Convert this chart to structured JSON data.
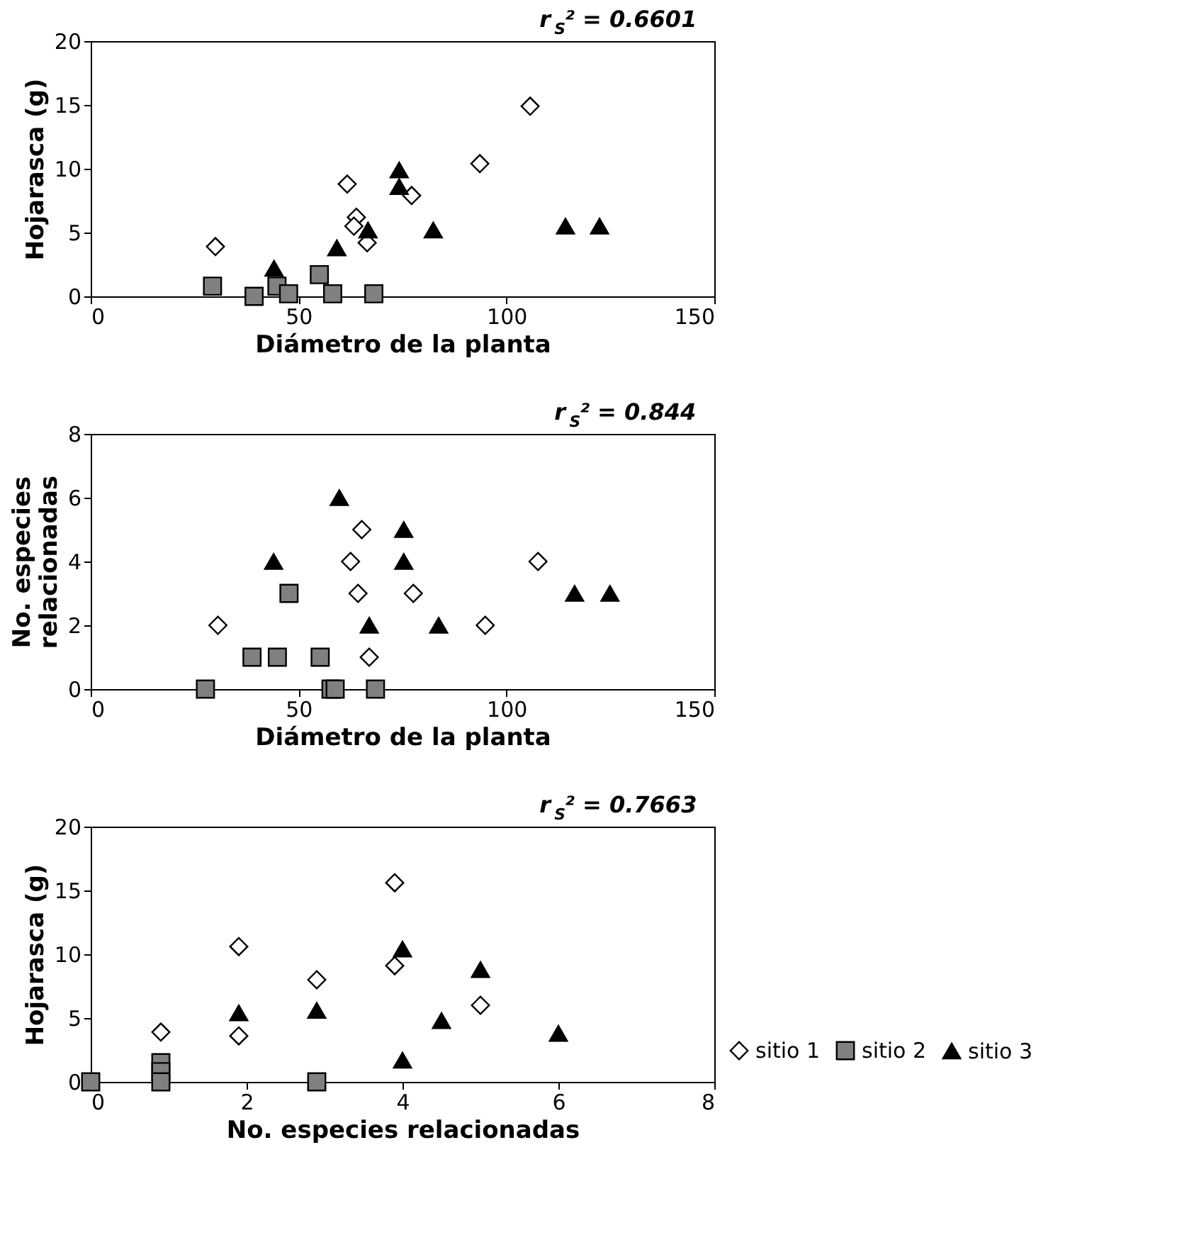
{
  "chart_data": [
    {
      "type": "scatter",
      "title": "r$_{S}$² = 0.6601",
      "xlabel": "Diámetro de la planta",
      "ylabel": "Hojarasca (g)",
      "xlim": [
        0,
        150
      ],
      "xticks": [
        0,
        50,
        100,
        150
      ],
      "ylim": [
        0,
        20
      ],
      "yticks": [
        0,
        5,
        10,
        15,
        20
      ],
      "grid": false,
      "legend": false,
      "series": [
        {
          "color": "#ffffff",
          "marker": "diamond",
          "x": [
            30,
            61.7,
            63.9,
            63.3,
            66.5,
            77.2,
            93.6,
            105.7
          ],
          "values": [
            3.9,
            8.8,
            6.2,
            5.5,
            4.2,
            7.9,
            10.4,
            14.9
          ]
        },
        {
          "color": "#808080",
          "marker": "square",
          "x": [
            29.3,
            39.3,
            44.8,
            47.6,
            55,
            58.2,
            68.1
          ],
          "values": [
            0.8,
            0,
            0.8,
            0.2,
            1.7,
            0.2,
            0.2
          ]
        },
        {
          "color": "#000000",
          "marker": "triangle",
          "x": [
            44.1,
            59.2,
            66.7,
            74.2,
            74.2,
            82.4,
            114.2,
            122.4
          ],
          "values": [
            2.2,
            3.8,
            5.2,
            9.9,
            8.6,
            5.2,
            5.5,
            5.5
          ]
        }
      ]
    },
    {
      "type": "scatter",
      "title": "r$_{S}$² = 0.844",
      "xlabel": "Diámetro de la planta",
      "ylabel": "No. especies relacionadas",
      "xlim": [
        0,
        150
      ],
      "xticks": [
        0,
        50,
        100,
        150
      ],
      "ylim": [
        0,
        8
      ],
      "yticks": [
        0,
        2,
        4,
        6,
        8
      ],
      "grid": false,
      "legend": false,
      "series": [
        {
          "color": "#ffffff",
          "marker": "diamond",
          "x": [
            30.6,
            62.5,
            65.2,
            64.3,
            67,
            77.6,
            94.9,
            107.6
          ],
          "values": [
            2,
            4,
            5,
            3,
            1,
            3,
            2,
            4
          ]
        },
        {
          "color": "#808080",
          "marker": "square",
          "x": [
            27.6,
            38.8,
            44.9,
            47.7,
            55.2,
            57.8,
            58.8,
            68.5
          ],
          "values": [
            0,
            1,
            1,
            3,
            1,
            0,
            0,
            0
          ]
        },
        {
          "color": "#000000",
          "marker": "triangle",
          "x": [
            44,
            59.8,
            75.3,
            75.3,
            67,
            83.7,
            116.4,
            124.9
          ],
          "values": [
            4,
            6,
            5,
            4,
            2,
            2,
            3,
            3
          ]
        }
      ]
    },
    {
      "type": "scatter",
      "title": "r$_{S}$² = 0.7663",
      "xlabel": "No. especies relacionadas",
      "ylabel": "Hojarasca (g)",
      "xlim": [
        0,
        8
      ],
      "xticks": [
        0,
        2,
        4,
        6,
        8
      ],
      "ylim": [
        0,
        20
      ],
      "yticks": [
        0,
        5,
        10,
        15,
        20
      ],
      "grid": false,
      "legend": "right",
      "series": [
        {
          "name": "sitio 1",
          "color": "#ffffff",
          "marker": "diamond",
          "x": [
            0.9,
            1.9,
            1.9,
            2.9,
            3.9,
            3.9,
            5
          ],
          "values": [
            3.9,
            10.6,
            3.6,
            8,
            15.6,
            9.1,
            6
          ]
        },
        {
          "name": "sitio 2",
          "color": "#808080",
          "marker": "square",
          "x": [
            0,
            0.9,
            0.9,
            0.9,
            2.9
          ],
          "values": [
            0,
            1.5,
            0.8,
            0,
            0
          ]
        },
        {
          "name": "sitio 3",
          "color": "#000000",
          "marker": "triangle",
          "x": [
            1.9,
            2.9,
            4,
            4,
            4.5,
            5,
            6
          ],
          "values": [
            5.4,
            5.6,
            10.4,
            1.7,
            4.8,
            8.8,
            3.8
          ]
        }
      ]
    }
  ]
}
